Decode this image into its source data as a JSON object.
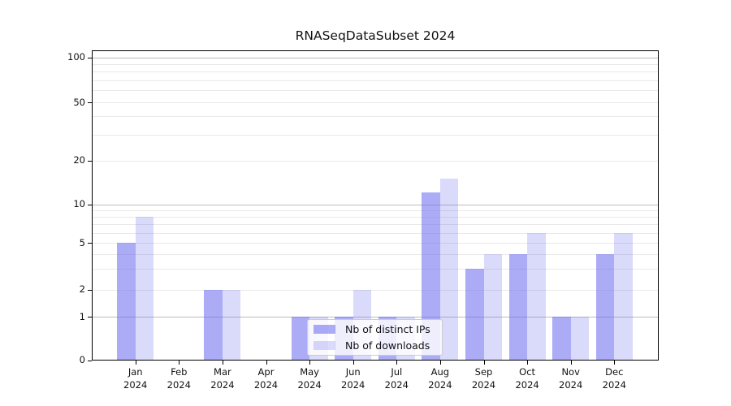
{
  "chart_data": {
    "type": "bar",
    "title": "RNASeqDataSubset 2024",
    "categories": [
      "Jan",
      "Feb",
      "Mar",
      "Apr",
      "May",
      "Jun",
      "Jul",
      "Aug",
      "Sep",
      "Oct",
      "Nov",
      "Dec"
    ],
    "year_label": "2024",
    "series": [
      {
        "name": "Nb of distinct IPs",
        "color": "#6666ee",
        "opacity": 0.55,
        "values": [
          5,
          0,
          2,
          0,
          1,
          1,
          1,
          12,
          3,
          4,
          1,
          4
        ]
      },
      {
        "name": "Nb of downloads",
        "color": "#6666ee",
        "opacity": 0.24,
        "values": [
          8,
          0,
          2,
          0,
          1,
          2,
          1,
          15,
          4,
          6,
          1,
          6
        ]
      }
    ],
    "y_axis": {
      "scale": "log-like (0,1 linear then log decades)",
      "tick_labels": [
        0,
        1,
        2,
        5,
        10,
        20,
        50,
        100
      ],
      "major_gridlines": [
        1,
        10,
        100
      ],
      "minor_gridlines": [
        2,
        3,
        4,
        5,
        6,
        7,
        8,
        9,
        20,
        30,
        40,
        50,
        60,
        70,
        80,
        90
      ],
      "ylim": [
        0,
        100
      ]
    },
    "xlabel": "",
    "ylabel": "",
    "grid": true,
    "legend_position": "lower center",
    "colors": {
      "bar_base": "#6666ee",
      "major_grid": "#bcbcbc",
      "minor_grid": "#e9e9e9",
      "spine": "#000000",
      "background": "#ffffff"
    }
  }
}
